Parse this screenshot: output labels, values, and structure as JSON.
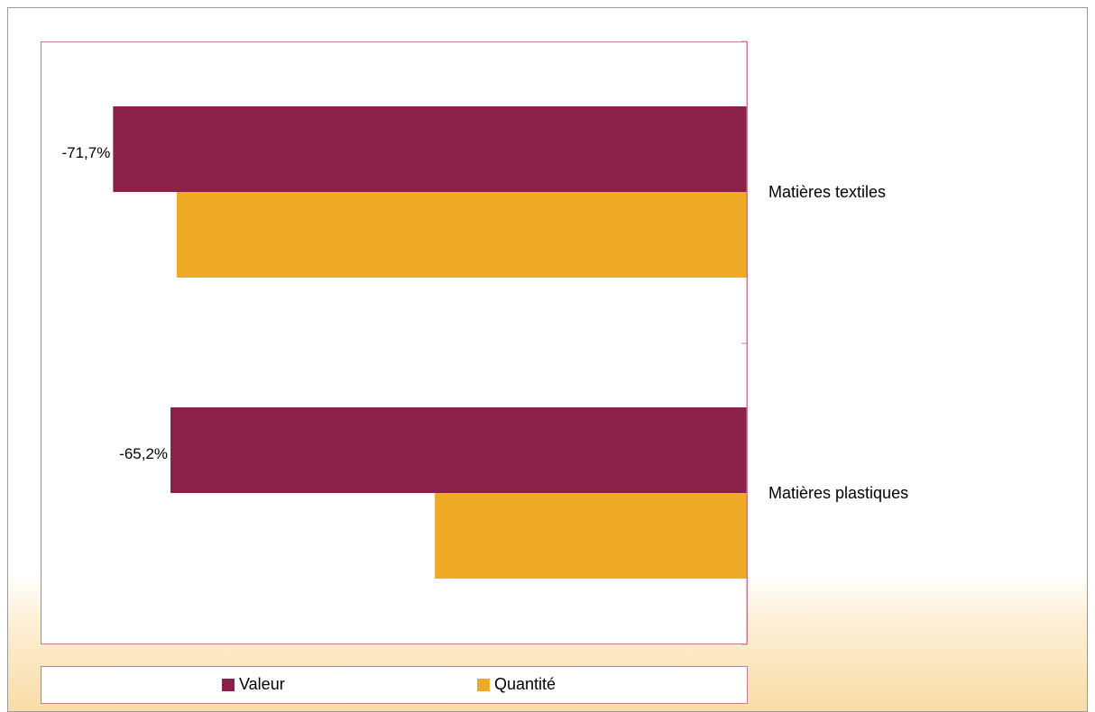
{
  "chart_data": {
    "type": "bar",
    "orientation": "horizontal",
    "categories": [
      "Matières textiles",
      "Matières plastiques"
    ],
    "series": [
      {
        "name": "Valeur",
        "values": [
          -71.7,
          -65.2
        ],
        "color": "#8b2148",
        "data_labels": [
          "-71,7%",
          "-65,2%"
        ]
      },
      {
        "name": "Quantité",
        "values": [
          -64.5,
          -35.3
        ],
        "color": "#eeaa25"
      }
    ],
    "xlim": [
      -80,
      0
    ],
    "grid": false,
    "legend_position": "bottom"
  }
}
